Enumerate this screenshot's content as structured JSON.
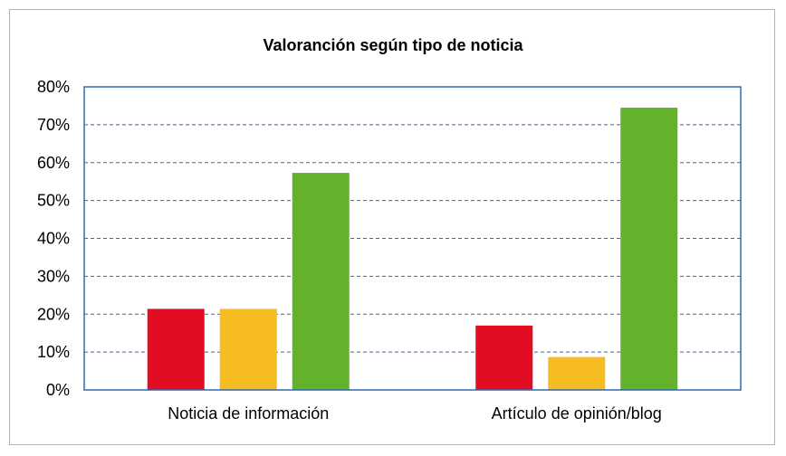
{
  "chart_data": {
    "type": "bar",
    "title": "Valoranción según tipo de noticia",
    "categories": [
      "Noticia de información",
      "Artículo de opinión/blog"
    ],
    "series": [
      {
        "color": "#e20d22",
        "values": [
          21.4,
          17.0
        ]
      },
      {
        "color": "#f7bc21",
        "values": [
          21.4,
          8.7
        ]
      },
      {
        "color": "#64b12b",
        "values": [
          57.3,
          74.5
        ]
      }
    ],
    "ylim": [
      0,
      80
    ],
    "yticks": [
      "0%",
      "10%",
      "20%",
      "30%",
      "40%",
      "50%",
      "60%",
      "70%",
      "80%"
    ],
    "grid": true,
    "colors": {
      "axis": "#2e6ab1",
      "grid": "#2e6ab1",
      "border": "#b3b3b3"
    }
  }
}
